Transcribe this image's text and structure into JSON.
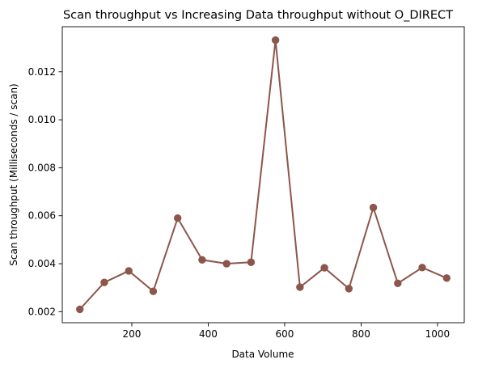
{
  "chart_data": {
    "type": "line",
    "title": "Scan throughput vs Increasing Data throughput without O_DIRECT",
    "xlabel": "Data Volume",
    "ylabel": "Scan throughput (Milliseconds / scan)",
    "x": [
      64,
      128,
      192,
      256,
      320,
      384,
      448,
      512,
      576,
      640,
      704,
      768,
      832,
      896,
      960,
      1024
    ],
    "series": [
      {
        "values": [
          0.0021,
          0.00322,
          0.0037,
          0.00285,
          0.0059,
          0.00416,
          0.004,
          0.00406,
          0.01332,
          0.00302,
          0.00383,
          0.00296,
          0.00634,
          0.00318,
          0.00384,
          0.0034
        ],
        "color": "#8c564b"
      }
    ],
    "xlim": [
      18,
      1070
    ],
    "ylim": [
      0.00154,
      0.01388
    ],
    "xticks": [
      200,
      400,
      600,
      800,
      1000
    ],
    "xtick_labels": [
      "200",
      "400",
      "600",
      "800",
      "1000"
    ],
    "yticks": [
      0.002,
      0.004,
      0.006,
      0.008,
      0.01,
      0.012
    ],
    "ytick_labels": [
      "0.002",
      "0.004",
      "0.006",
      "0.008",
      "0.010",
      "0.012"
    ],
    "grid": false,
    "legend": "none",
    "marker": "circle"
  }
}
